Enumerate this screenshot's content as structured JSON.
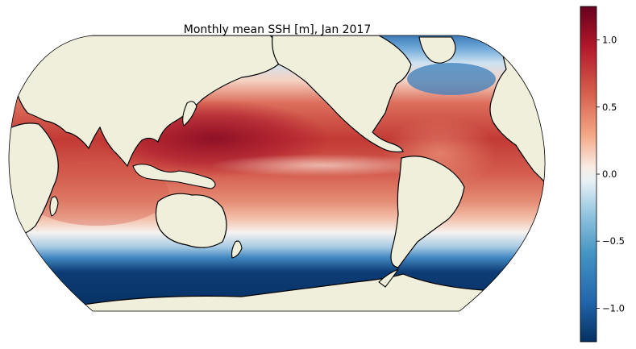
{
  "map": {
    "title": "Monthly mean SSH [m], Jan 2017",
    "projection": "Robinson, centred on the Pacific",
    "variable": "sea surface height",
    "units": "m",
    "land_color": "#efefdb",
    "coastline_color": "#000000"
  },
  "colorbar": {
    "colormap": "RdBu_r",
    "range": [
      -1.25,
      1.25
    ],
    "ticks": [
      {
        "value": 1.0,
        "label": "1.0"
      },
      {
        "value": 0.5,
        "label": "0.5"
      },
      {
        "value": 0.0,
        "label": "0.0"
      },
      {
        "value": -0.5,
        "label": "−0.5"
      },
      {
        "value": -1.0,
        "label": "−1.0"
      }
    ],
    "colors": {
      "max": "#67001f",
      "high": "#d6604d",
      "mid": "#f7f7f7",
      "low": "#4393c3",
      "min": "#053061"
    }
  }
}
